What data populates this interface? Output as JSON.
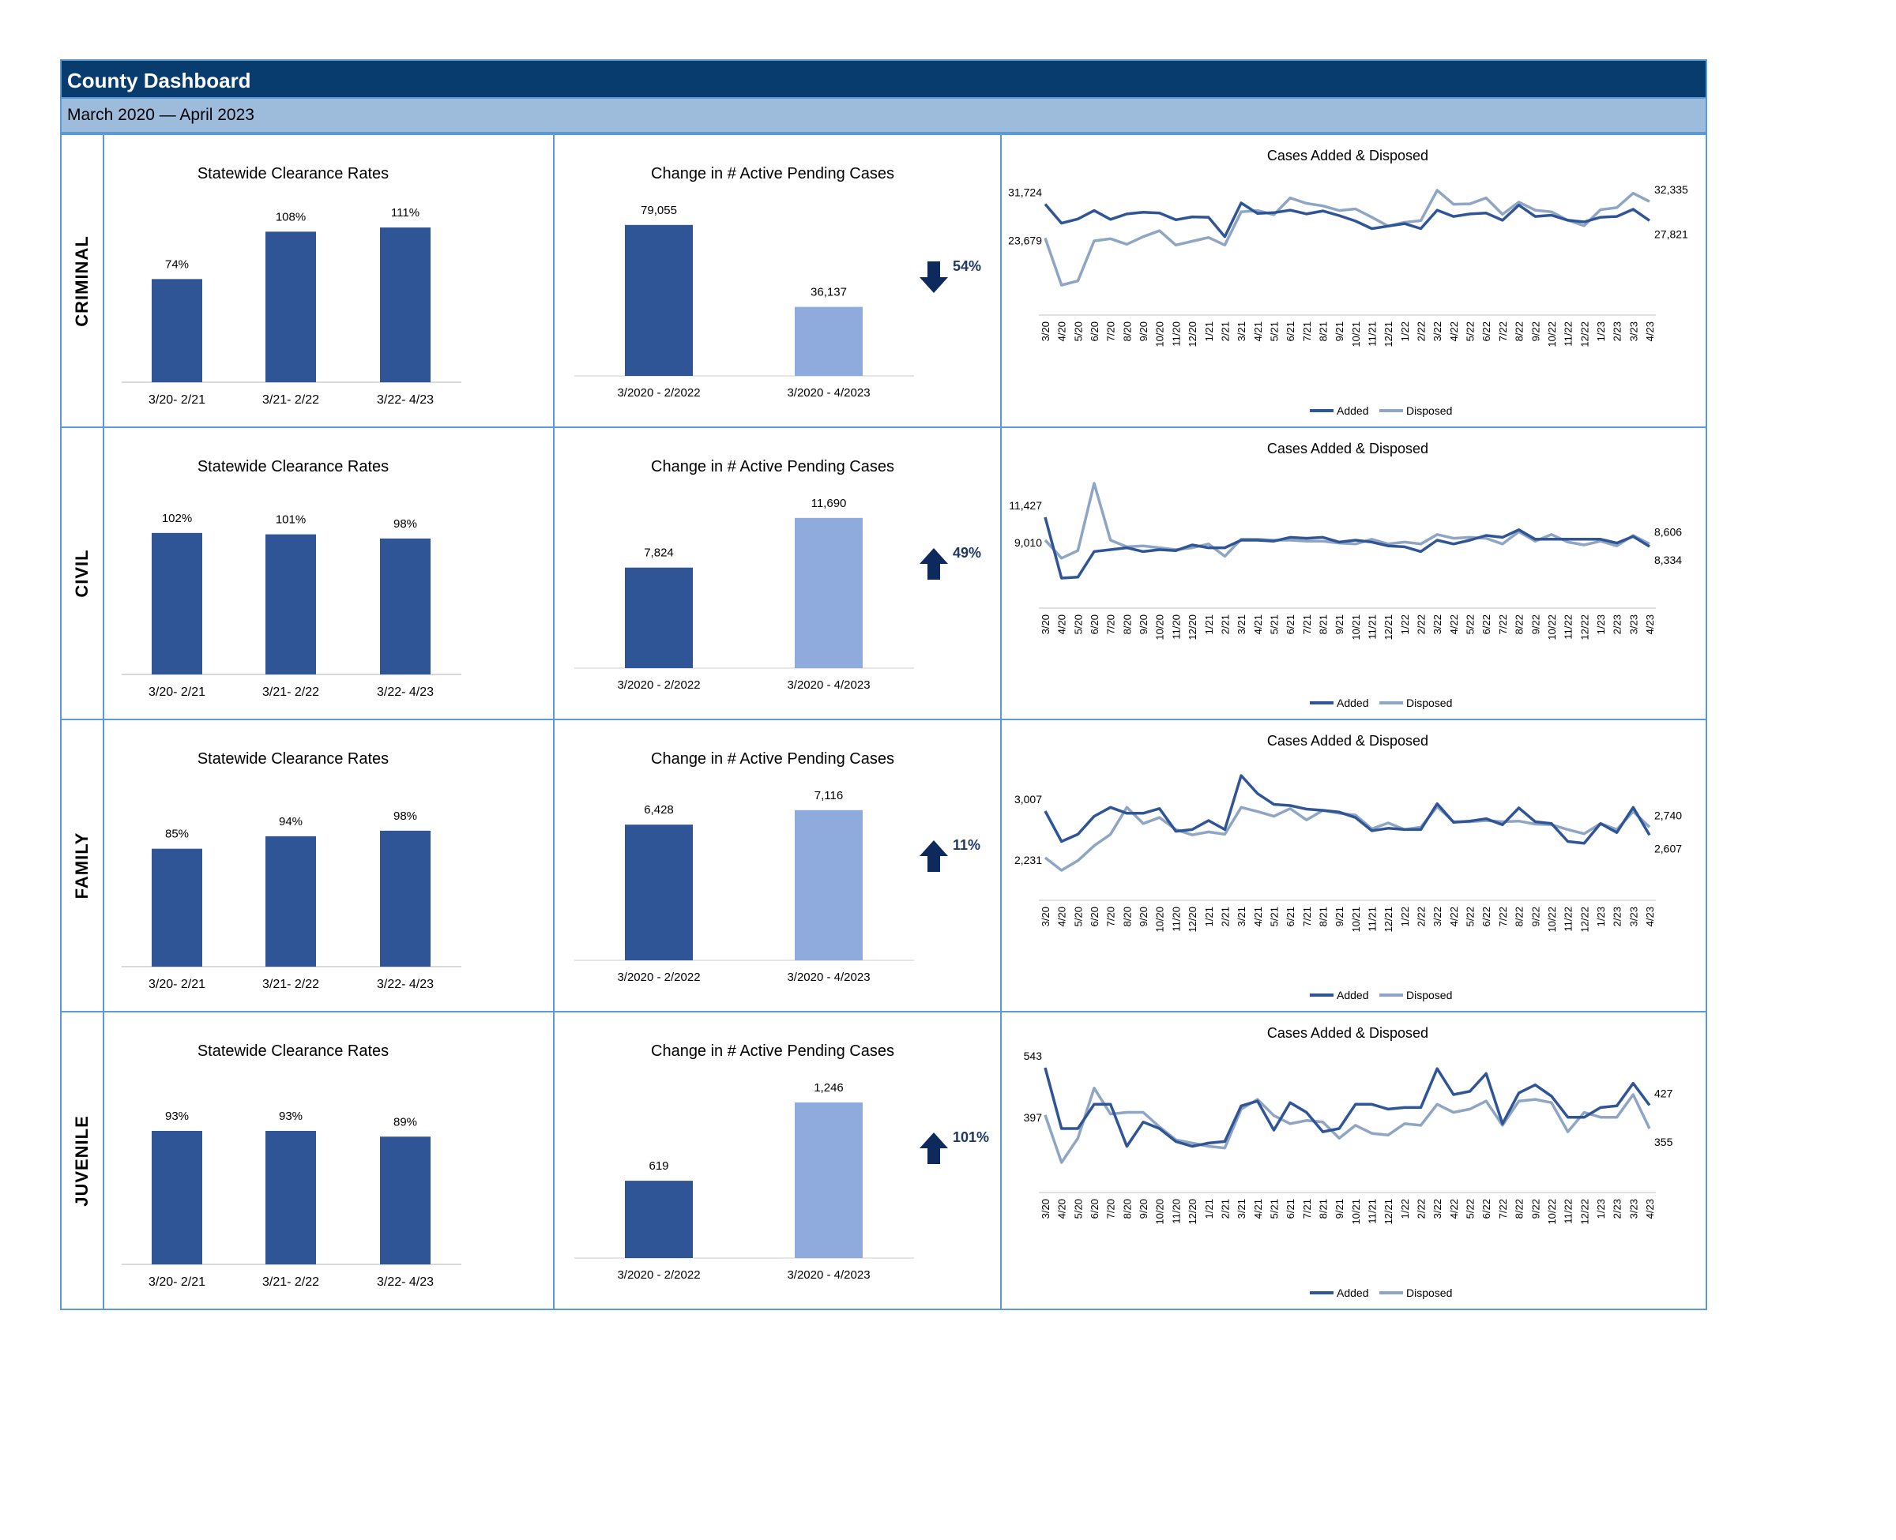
{
  "header": {
    "title": "County Dashboard",
    "subtitle": "March 2020 — April 2023"
  },
  "colors": {
    "dark_blue": "#2f5597",
    "light_blue": "#8faadc",
    "line_added": "#2f5597",
    "line_disposed": "#8ea5c3",
    "arrow": "#0e2a5c"
  },
  "legend": {
    "added": "Added",
    "disposed": "Disposed"
  },
  "months": [
    "3/20",
    "4/20",
    "5/20",
    "6/20",
    "7/20",
    "8/20",
    "9/20",
    "10/20",
    "11/20",
    "12/20",
    "1/21",
    "2/21",
    "3/21",
    "4/21",
    "5/21",
    "6/21",
    "7/21",
    "8/21",
    "9/21",
    "10/21",
    "11/21",
    "12/21",
    "1/22",
    "2/22",
    "3/22",
    "4/22",
    "5/22",
    "6/22",
    "7/22",
    "8/22",
    "9/22",
    "10/22",
    "11/22",
    "12/22",
    "1/23",
    "2/23",
    "3/23",
    "4/23"
  ],
  "rows": [
    {
      "label": "CRIMINAL",
      "clearance": {
        "type": "bar",
        "title": "Statewide Clearance Rates",
        "categories": [
          "3/20- 2/21",
          "3/21- 2/22",
          "3/22- 4/23"
        ],
        "values": [
          74,
          108,
          111
        ],
        "value_labels": [
          "74%",
          "108%",
          "111%"
        ]
      },
      "pending": {
        "type": "bar",
        "title": "Change in # Active Pending Cases",
        "categories": [
          "3/2020 - 2/2022",
          "3/2020 - 4/2023"
        ],
        "values": [
          79055,
          36137
        ],
        "value_labels": [
          "79,055",
          "36,137"
        ],
        "change": "54%",
        "direction": "down"
      },
      "trend": {
        "type": "line",
        "title": "Cases Added & Disposed",
        "series": [
          {
            "name": "Added",
            "values": [
              31724,
              27200,
              28200,
              30200,
              28100,
              29400,
              29800,
              29600,
              28000,
              28700,
              28600,
              24000,
              32000,
              29500,
              29700,
              30300,
              29400,
              30100,
              29000,
              27700,
              25900,
              26500,
              27100,
              25900,
              30300,
              28800,
              29400,
              29600,
              27900,
              31500,
              28800,
              29100,
              27900,
              27500,
              28600,
              28800,
              30500,
              27821
            ]
          },
          {
            "name": "Disposed",
            "values": [
              23679,
              12500,
              13500,
              23000,
              23500,
              22200,
              24000,
              25400,
              22000,
              22900,
              23800,
              22000,
              29900,
              30200,
              29200,
              33200,
              31900,
              31300,
              30200,
              30600,
              28600,
              26500,
              27400,
              27800,
              35000,
              31700,
              31800,
              33200,
              29300,
              32200,
              30300,
              29900,
              27900,
              26600,
              30400,
              30900,
              34300,
              32335
            ]
          }
        ],
        "start_labels": [
          "31,724",
          "23,679"
        ],
        "end_labels": [
          "32,335",
          "27,821"
        ]
      }
    },
    {
      "label": "CIVIL",
      "clearance": {
        "type": "bar",
        "title": "Statewide Clearance Rates",
        "categories": [
          "3/20- 2/21",
          "3/21- 2/22",
          "3/22- 4/23"
        ],
        "values": [
          102,
          101,
          98
        ],
        "value_labels": [
          "102%",
          "101%",
          "98%"
        ]
      },
      "pending": {
        "type": "bar",
        "title": "Change in # Active Pending Cases",
        "categories": [
          "3/2020 - 2/2022",
          "3/2020 - 4/2023"
        ],
        "values": [
          7824,
          11690
        ],
        "value_labels": [
          "7,824",
          "11,690"
        ],
        "change": "49%",
        "direction": "up"
      },
      "trend": {
        "type": "line",
        "title": "Cases Added & Disposed",
        "series": [
          {
            "name": "Added",
            "values": [
              11427,
              5000,
              5100,
              7800,
              8000,
              8200,
              7800,
              8000,
              7900,
              8500,
              8200,
              8200,
              9000,
              9000,
              8900,
              9300,
              9200,
              9300,
              8800,
              9000,
              8800,
              8400,
              8300,
              7800,
              9000,
              8600,
              9000,
              9500,
              9300,
              10100,
              9100,
              9100,
              9100,
              9100,
              9100,
              8700,
              9400,
              8334
            ]
          },
          {
            "name": "Disposed",
            "values": [
              9010,
              7100,
              7900,
              15000,
              9000,
              8300,
              8400,
              8200,
              8000,
              8200,
              8600,
              7300,
              9100,
              9100,
              9000,
              9000,
              8900,
              8900,
              8700,
              8600,
              9100,
              8600,
              8800,
              8600,
              9600,
              9200,
              9300,
              9200,
              8600,
              9900,
              8900,
              9600,
              8800,
              8500,
              8900,
              8400,
              9500,
              8606
            ]
          }
        ],
        "start_labels": [
          "11,427",
          "9,010"
        ],
        "end_labels": [
          "8,606",
          "8,334"
        ]
      }
    },
    {
      "label": "FAMILY",
      "clearance": {
        "type": "bar",
        "title": "Statewide Clearance Rates",
        "categories": [
          "3/20- 2/21",
          "3/21- 2/22",
          "3/22- 4/23"
        ],
        "values": [
          85,
          94,
          98
        ],
        "value_labels": [
          "85%",
          "94%",
          "98%"
        ]
      },
      "pending": {
        "type": "bar",
        "title": "Change in # Active Pending Cases",
        "categories": [
          "3/2020 - 2/2022",
          "3/2020 - 4/2023"
        ],
        "values": [
          6428,
          7116
        ],
        "value_labels": [
          "6,428",
          "7,116"
        ],
        "change": "11%",
        "direction": "up"
      },
      "trend": {
        "type": "line",
        "title": "Cases Added & Disposed",
        "series": [
          {
            "name": "Added",
            "values": [
              3007,
              2500,
              2620,
              2920,
              3070,
              2970,
              2970,
              3050,
              2670,
              2700,
              2850,
              2700,
              3600,
              3300,
              3120,
              3100,
              3040,
              3020,
              2990,
              2900,
              2680,
              2720,
              2700,
              2700,
              3130,
              2820,
              2840,
              2880,
              2780,
              3060,
              2830,
              2800,
              2500,
              2470,
              2800,
              2650,
              3070,
              2607
            ]
          },
          {
            "name": "Disposed",
            "values": [
              2231,
              2020,
              2180,
              2430,
              2620,
              3070,
              2800,
              2900,
              2700,
              2610,
              2660,
              2620,
              3070,
              3000,
              2920,
              3050,
              2860,
              3020,
              2970,
              2940,
              2710,
              2810,
              2700,
              2740,
              3080,
              2830,
              2830,
              2850,
              2830,
              2840,
              2790,
              2780,
              2700,
              2630,
              2800,
              2700,
              3000,
              2740
            ]
          }
        ],
        "start_labels": [
          "3,007",
          "2,231"
        ],
        "end_labels": [
          "2,740",
          "2,607"
        ]
      }
    },
    {
      "label": "JUVENILE",
      "clearance": {
        "type": "bar",
        "title": "Statewide Clearance Rates",
        "categories": [
          "3/20- 2/21",
          "3/21- 2/22",
          "3/22- 4/23"
        ],
        "values": [
          93,
          93,
          89
        ],
        "value_labels": [
          "93%",
          "93%",
          "89%"
        ]
      },
      "pending": {
        "type": "bar",
        "title": "Change in # Active Pending Cases",
        "categories": [
          "3/2020 - 2/2022",
          "3/2020 - 4/2023"
        ],
        "values": [
          619,
          1246
        ],
        "value_labels": [
          "619",
          "1,246"
        ],
        "change": "101%",
        "direction": "up"
      },
      "trend": {
        "type": "line",
        "title": "Cases Added & Disposed",
        "series": [
          {
            "name": "Added",
            "values": [
              543,
              355,
              355,
              430,
              430,
              300,
              375,
              355,
              315,
              300,
              310,
              315,
              425,
              440,
              350,
              435,
              405,
              345,
              355,
              430,
              430,
              415,
              420,
              420,
              540,
              460,
              470,
              525,
              370,
              465,
              490,
              455,
              390,
              390,
              420,
              425,
              495,
              427
            ]
          },
          {
            "name": "Disposed",
            "values": [
              397,
              250,
              325,
              480,
              400,
              405,
              405,
              360,
              320,
              310,
              300,
              295,
              415,
              445,
              395,
              370,
              380,
              375,
              325,
              365,
              340,
              335,
              370,
              365,
              430,
              405,
              415,
              440,
              365,
              440,
              445,
              435,
              345,
              405,
              390,
              390,
              460,
              355
            ]
          }
        ],
        "start_labels": [
          "543",
          "397"
        ],
        "end_labels": [
          "427",
          "355"
        ]
      }
    }
  ]
}
